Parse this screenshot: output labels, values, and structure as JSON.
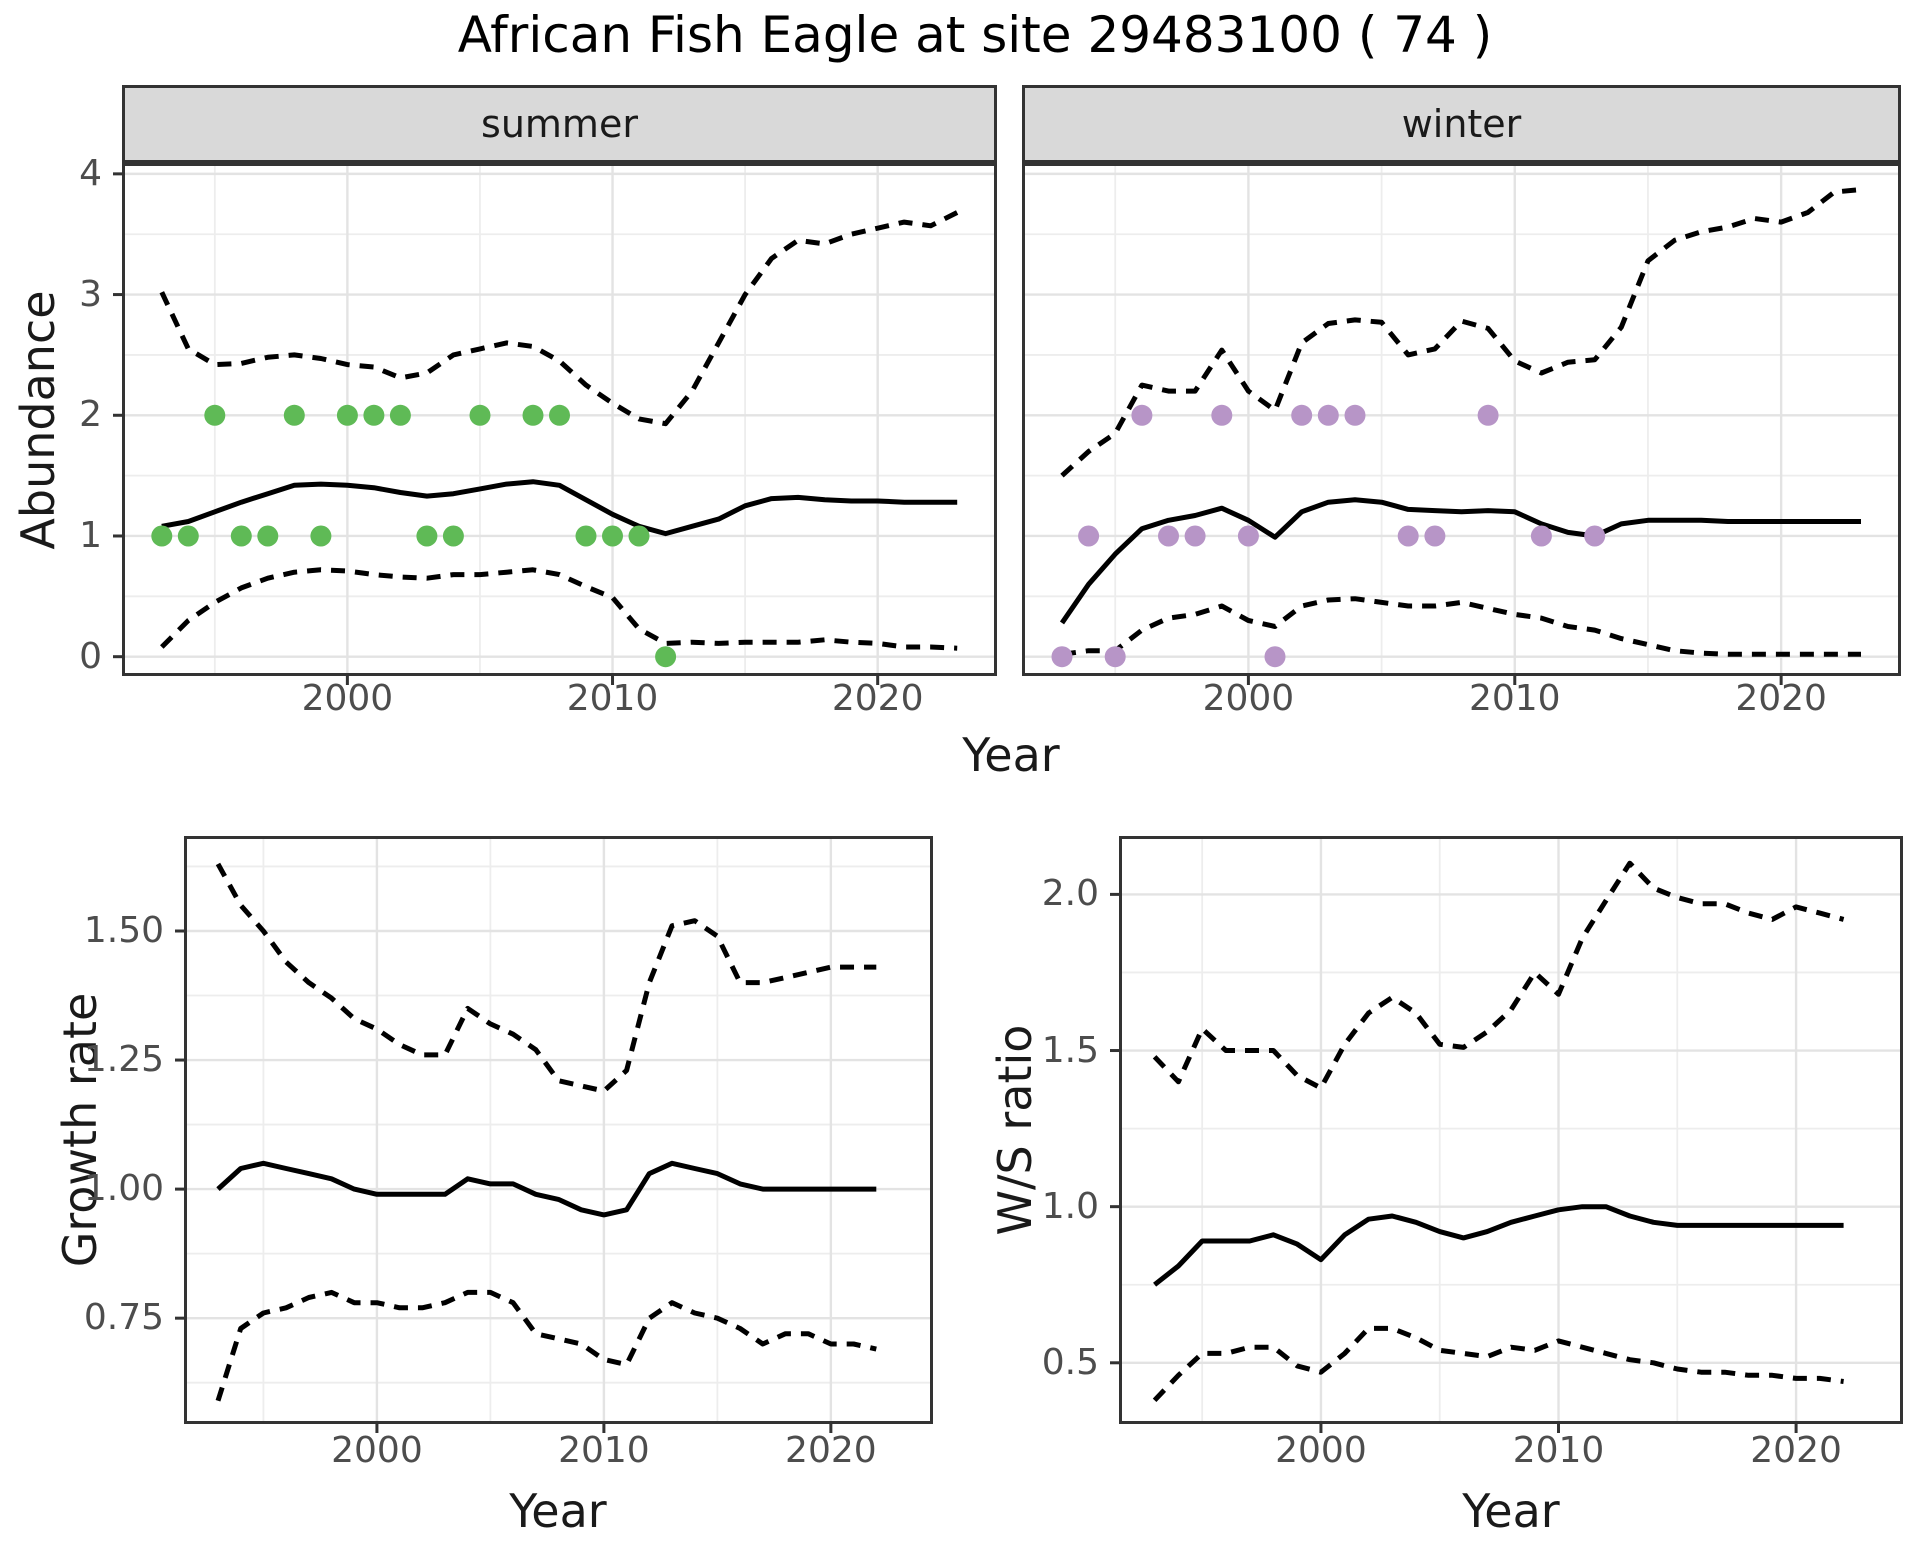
{
  "title": "African Fish Eagle at site 29483100 ( 74 )",
  "colors": {
    "summer_points": "#5fba56",
    "winter_points": "#b795c7",
    "line": "#000000",
    "strip_bg": "#d9d9d9",
    "panel_border": "#333333",
    "grid_major": "#e3e3e3",
    "grid_minor": "#ededed",
    "axis_text": "#4d4d4d"
  },
  "shared_x_label": "Year",
  "chart_data": [
    {
      "type": "line",
      "facet_label": "summer",
      "ylabel": "Abundance",
      "xlabel": "Year",
      "xlim": [
        1991.5,
        2024.5
      ],
      "ylim": [
        -0.16,
        4.09
      ],
      "x_ticks": [
        2000,
        2010,
        2020
      ],
      "x_tick_labels": [
        "2000",
        "2010",
        "2020"
      ],
      "x_minor": [
        1995,
        2005,
        2015
      ],
      "y_ticks": [
        0,
        1,
        2,
        3,
        4
      ],
      "y_tick_labels": [
        "0",
        "1",
        "2",
        "3",
        "4"
      ],
      "y_minor": [
        0.5,
        1.5,
        2.5,
        3.5
      ],
      "years": [
        1993,
        1994,
        1995,
        1996,
        1997,
        1998,
        1999,
        2000,
        2001,
        2002,
        2003,
        2004,
        2005,
        2006,
        2007,
        2008,
        2009,
        2010,
        2011,
        2012,
        2013,
        2014,
        2015,
        2016,
        2017,
        2018,
        2019,
        2020,
        2021,
        2022,
        2023
      ],
      "series": [
        {
          "name": "upper_ci",
          "style": "dashed",
          "values": [
            3.02,
            2.55,
            2.42,
            2.43,
            2.48,
            2.5,
            2.47,
            2.42,
            2.4,
            2.31,
            2.35,
            2.5,
            2.55,
            2.6,
            2.57,
            2.45,
            2.25,
            2.1,
            1.97,
            1.93,
            2.2,
            2.6,
            3.0,
            3.3,
            3.45,
            3.42,
            3.5,
            3.55,
            3.6,
            3.57,
            3.68
          ]
        },
        {
          "name": "mean",
          "style": "solid",
          "values": [
            1.08,
            1.12,
            1.2,
            1.28,
            1.35,
            1.42,
            1.43,
            1.42,
            1.4,
            1.36,
            1.33,
            1.35,
            1.39,
            1.43,
            1.45,
            1.42,
            1.3,
            1.18,
            1.08,
            1.02,
            1.08,
            1.14,
            1.25,
            1.31,
            1.32,
            1.3,
            1.29,
            1.29,
            1.28,
            1.28,
            1.28
          ]
        },
        {
          "name": "lower_ci",
          "style": "dashed",
          "values": [
            0.08,
            0.3,
            0.45,
            0.57,
            0.65,
            0.7,
            0.72,
            0.71,
            0.68,
            0.66,
            0.65,
            0.68,
            0.68,
            0.7,
            0.72,
            0.68,
            0.58,
            0.49,
            0.23,
            0.11,
            0.12,
            0.11,
            0.12,
            0.12,
            0.12,
            0.14,
            0.12,
            0.11,
            0.08,
            0.08,
            0.07
          ]
        }
      ],
      "observations": {
        "x": [
          1993,
          1994,
          1995,
          1996,
          1997,
          1998,
          1999,
          2000,
          2001,
          2002,
          2003,
          2004,
          2005,
          2007,
          2008,
          2009,
          2010,
          2011,
          2012
        ],
        "y": [
          1,
          1,
          2,
          1,
          1,
          2,
          1,
          2,
          2,
          2,
          1,
          1,
          2,
          2,
          2,
          1,
          1,
          1,
          0
        ]
      },
      "point_color_key": "summer_points"
    },
    {
      "type": "line",
      "facet_label": "winter",
      "ylabel": "Abundance",
      "xlabel": "Year",
      "xlim": [
        1991.5,
        2024.5
      ],
      "ylim": [
        -0.16,
        4.09
      ],
      "x_ticks": [
        2000,
        2010,
        2020
      ],
      "x_tick_labels": [
        "2000",
        "2010",
        "2020"
      ],
      "x_minor": [
        1995,
        2005,
        2015
      ],
      "y_ticks": [
        0,
        1,
        2,
        3,
        4
      ],
      "y_tick_labels": [
        "0",
        "1",
        "2",
        "3",
        "4"
      ],
      "y_minor": [
        0.5,
        1.5,
        2.5,
        3.5
      ],
      "years": [
        1993,
        1994,
        1995,
        1996,
        1997,
        1998,
        1999,
        2000,
        2001,
        2002,
        2003,
        2004,
        2005,
        2006,
        2007,
        2008,
        2009,
        2010,
        2011,
        2012,
        2013,
        2014,
        2015,
        2016,
        2017,
        2018,
        2019,
        2020,
        2021,
        2022,
        2023
      ],
      "series": [
        {
          "name": "upper_ci",
          "style": "dashed",
          "values": [
            1.5,
            1.7,
            1.85,
            2.25,
            2.2,
            2.2,
            2.54,
            2.2,
            2.04,
            2.6,
            2.76,
            2.79,
            2.77,
            2.5,
            2.55,
            2.78,
            2.72,
            2.45,
            2.35,
            2.44,
            2.46,
            2.73,
            3.28,
            3.45,
            3.52,
            3.56,
            3.63,
            3.6,
            3.68,
            3.85,
            3.87
          ]
        },
        {
          "name": "mean",
          "style": "solid",
          "values": [
            0.28,
            0.6,
            0.85,
            1.06,
            1.13,
            1.17,
            1.23,
            1.13,
            0.99,
            1.2,
            1.28,
            1.3,
            1.28,
            1.22,
            1.21,
            1.2,
            1.21,
            1.2,
            1.1,
            1.03,
            1.0,
            1.1,
            1.13,
            1.13,
            1.13,
            1.12,
            1.12,
            1.12,
            1.12,
            1.12,
            1.12
          ]
        },
        {
          "name": "lower_ci",
          "style": "dashed",
          "values": [
            0.02,
            0.05,
            0.05,
            0.22,
            0.32,
            0.35,
            0.42,
            0.3,
            0.25,
            0.42,
            0.47,
            0.48,
            0.45,
            0.42,
            0.42,
            0.45,
            0.4,
            0.35,
            0.32,
            0.25,
            0.22,
            0.15,
            0.1,
            0.05,
            0.03,
            0.02,
            0.02,
            0.02,
            0.02,
            0.02,
            0.02
          ]
        }
      ],
      "observations": {
        "x": [
          1993,
          1994,
          1995,
          1996,
          1997,
          1998,
          1999,
          2000,
          2001,
          2002,
          2003,
          2004,
          2006,
          2007,
          2009,
          2011,
          2013
        ],
        "y": [
          0,
          1,
          0,
          2,
          1,
          1,
          2,
          1,
          0,
          2,
          2,
          2,
          1,
          1,
          2,
          1,
          1
        ]
      },
      "point_color_key": "winter_points"
    },
    {
      "type": "line",
      "facet_label": "",
      "ylabel": "Growth rate",
      "xlabel": "Year",
      "xlim": [
        1991.5,
        2024.5
      ],
      "ylim": [
        0.545,
        1.684
      ],
      "x_ticks": [
        2000,
        2010,
        2020
      ],
      "x_tick_labels": [
        "2000",
        "2010",
        "2020"
      ],
      "x_minor": [
        1995,
        2005,
        2015
      ],
      "y_ticks": [
        0.75,
        1.0,
        1.25,
        1.5
      ],
      "y_tick_labels": [
        "0.75",
        "1.00",
        "1.25",
        "1.50"
      ],
      "y_minor": [
        0.625,
        0.875,
        1.125,
        1.375,
        1.625
      ],
      "years": [
        1993,
        1994,
        1995,
        1996,
        1997,
        1998,
        1999,
        2000,
        2001,
        2002,
        2003,
        2004,
        2005,
        2006,
        2007,
        2008,
        2009,
        2010,
        2011,
        2012,
        2013,
        2014,
        2015,
        2016,
        2017,
        2018,
        2019,
        2020,
        2021,
        2022
      ],
      "series": [
        {
          "name": "upper_ci",
          "style": "dashed",
          "values": [
            1.63,
            1.55,
            1.5,
            1.44,
            1.4,
            1.37,
            1.33,
            1.31,
            1.28,
            1.26,
            1.26,
            1.35,
            1.32,
            1.3,
            1.27,
            1.21,
            1.2,
            1.19,
            1.23,
            1.4,
            1.51,
            1.52,
            1.49,
            1.4,
            1.4,
            1.41,
            1.42,
            1.43,
            1.43,
            1.43
          ]
        },
        {
          "name": "mean",
          "style": "solid",
          "values": [
            1.0,
            1.04,
            1.05,
            1.04,
            1.03,
            1.02,
            1.0,
            0.99,
            0.99,
            0.99,
            0.99,
            1.02,
            1.01,
            1.01,
            0.99,
            0.98,
            0.96,
            0.95,
            0.96,
            1.03,
            1.05,
            1.04,
            1.03,
            1.01,
            1.0,
            1.0,
            1.0,
            1.0,
            1.0,
            1.0
          ]
        },
        {
          "name": "lower_ci",
          "style": "dashed",
          "values": [
            0.59,
            0.73,
            0.76,
            0.77,
            0.79,
            0.8,
            0.78,
            0.78,
            0.77,
            0.77,
            0.78,
            0.8,
            0.8,
            0.78,
            0.72,
            0.71,
            0.7,
            0.67,
            0.66,
            0.75,
            0.78,
            0.76,
            0.75,
            0.73,
            0.7,
            0.72,
            0.72,
            0.7,
            0.7,
            0.69
          ]
        }
      ],
      "observations": {
        "x": [],
        "y": []
      },
      "point_color_key": null
    },
    {
      "type": "line",
      "facet_label": "",
      "ylabel": "W/S ratio",
      "xlabel": "Year",
      "xlim": [
        1991.5,
        2024.5
      ],
      "ylim": [
        0.304,
        2.187
      ],
      "x_ticks": [
        2000,
        2010,
        2020
      ],
      "x_tick_labels": [
        "2000",
        "2010",
        "2020"
      ],
      "x_minor": [
        1995,
        2005,
        2015
      ],
      "y_ticks": [
        0.5,
        1.0,
        1.5,
        2.0
      ],
      "y_tick_labels": [
        "0.5",
        "1.0",
        "1.5",
        "2.0"
      ],
      "y_minor": [
        0.75,
        1.25,
        1.75
      ],
      "years": [
        1993,
        1994,
        1995,
        1996,
        1997,
        1998,
        1999,
        2000,
        2001,
        2002,
        2003,
        2004,
        2005,
        2006,
        2007,
        2008,
        2009,
        2010,
        2011,
        2012,
        2013,
        2014,
        2015,
        2016,
        2017,
        2018,
        2019,
        2020,
        2021,
        2022
      ],
      "series": [
        {
          "name": "upper_ci",
          "style": "dashed",
          "values": [
            1.48,
            1.4,
            1.57,
            1.5,
            1.5,
            1.5,
            1.42,
            1.38,
            1.52,
            1.62,
            1.67,
            1.62,
            1.52,
            1.51,
            1.56,
            1.63,
            1.75,
            1.68,
            1.86,
            1.98,
            2.1,
            2.02,
            1.99,
            1.97,
            1.97,
            1.94,
            1.92,
            1.96,
            1.94,
            1.92
          ]
        },
        {
          "name": "mean",
          "style": "solid",
          "values": [
            0.75,
            0.81,
            0.89,
            0.89,
            0.89,
            0.91,
            0.88,
            0.83,
            0.91,
            0.96,
            0.97,
            0.95,
            0.92,
            0.9,
            0.92,
            0.95,
            0.97,
            0.99,
            1.0,
            1.0,
            0.97,
            0.95,
            0.94,
            0.94,
            0.94,
            0.94,
            0.94,
            0.94,
            0.94,
            0.94
          ]
        },
        {
          "name": "lower_ci",
          "style": "dashed",
          "values": [
            0.38,
            0.46,
            0.53,
            0.53,
            0.55,
            0.55,
            0.49,
            0.47,
            0.53,
            0.61,
            0.61,
            0.58,
            0.54,
            0.53,
            0.52,
            0.55,
            0.54,
            0.57,
            0.55,
            0.53,
            0.51,
            0.5,
            0.48,
            0.47,
            0.47,
            0.46,
            0.46,
            0.45,
            0.45,
            0.44
          ]
        }
      ],
      "observations": {
        "x": [],
        "y": []
      },
      "point_color_key": null
    }
  ]
}
